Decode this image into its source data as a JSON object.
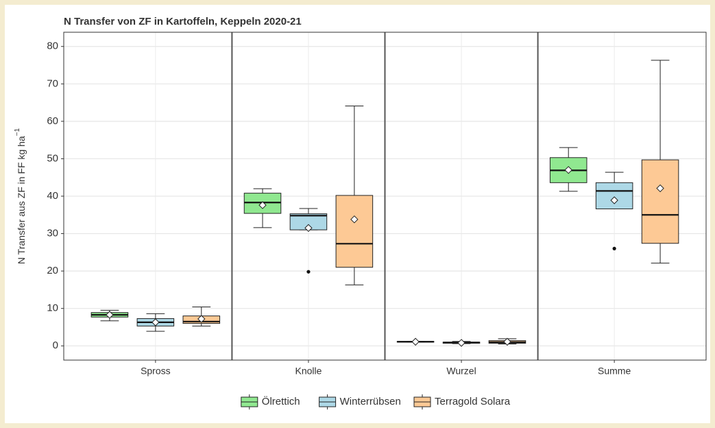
{
  "chart_data": {
    "type": "boxplot",
    "title": "N Transfer von ZF in Kartoffeln, Keppeln 2020-21",
    "ylabel": "N Transfer aus ZF in FF kg ha",
    "ylabel_superscript": "−1",
    "categories": [
      "Spross",
      "Knolle",
      "Wurzel",
      "Summe"
    ],
    "ylim": [
      -3.8,
      83.8
    ],
    "yticks": [
      0,
      10,
      20,
      30,
      40,
      50,
      60,
      70,
      80
    ],
    "grid": true,
    "legend": "bottom",
    "series": [
      {
        "name": "Ölrettich",
        "color": "#90e890",
        "values": [
          {
            "min": 6.7,
            "q1": 7.7,
            "median": 8.3,
            "q3": 8.9,
            "max": 9.5,
            "mean": 8.3,
            "outliers": []
          },
          {
            "min": 31.6,
            "q1": 35.4,
            "median": 38.3,
            "q3": 40.8,
            "max": 42.0,
            "mean": 37.6,
            "outliers": []
          },
          {
            "min": 1.0,
            "q1": 1.0,
            "median": 1.1,
            "q3": 1.2,
            "max": 1.2,
            "mean": 1.1,
            "outliers": []
          },
          {
            "min": 41.3,
            "q1": 43.6,
            "median": 46.9,
            "q3": 50.3,
            "max": 53.0,
            "mean": 47.0,
            "outliers": []
          }
        ]
      },
      {
        "name": "Winterrübsen",
        "color": "#add8e6",
        "values": [
          {
            "min": 3.9,
            "q1": 5.3,
            "median": 6.3,
            "q3": 7.3,
            "max": 8.6,
            "mean": 6.3,
            "outliers": []
          },
          {
            "min": 31.0,
            "q1": 31.0,
            "median": 34.8,
            "q3": 35.3,
            "max": 36.7,
            "mean": 31.5,
            "outliers": [
              19.8
            ]
          },
          {
            "min": 0.6,
            "q1": 0.7,
            "median": 0.9,
            "q3": 1.0,
            "max": 1.2,
            "mean": 0.8,
            "outliers": []
          },
          {
            "min": 36.6,
            "q1": 36.6,
            "median": 41.4,
            "q3": 43.6,
            "max": 46.4,
            "mean": 38.9,
            "outliers": [
              26.0
            ]
          }
        ]
      },
      {
        "name": "Terragold Solara",
        "color": "#fdc995",
        "values": [
          {
            "min": 5.3,
            "q1": 6.0,
            "median": 6.5,
            "q3": 8.0,
            "max": 10.4,
            "mean": 7.2,
            "outliers": []
          },
          {
            "min": 16.3,
            "q1": 21.0,
            "median": 27.3,
            "q3": 40.2,
            "max": 64.1,
            "mean": 33.8,
            "outliers": []
          },
          {
            "min": 0.5,
            "q1": 0.7,
            "median": 1.0,
            "q3": 1.4,
            "max": 1.9,
            "mean": 1.1,
            "outliers": []
          },
          {
            "min": 22.1,
            "q1": 27.4,
            "median": 35.0,
            "q3": 49.7,
            "max": 76.3,
            "mean": 42.1,
            "outliers": []
          }
        ]
      }
    ]
  }
}
